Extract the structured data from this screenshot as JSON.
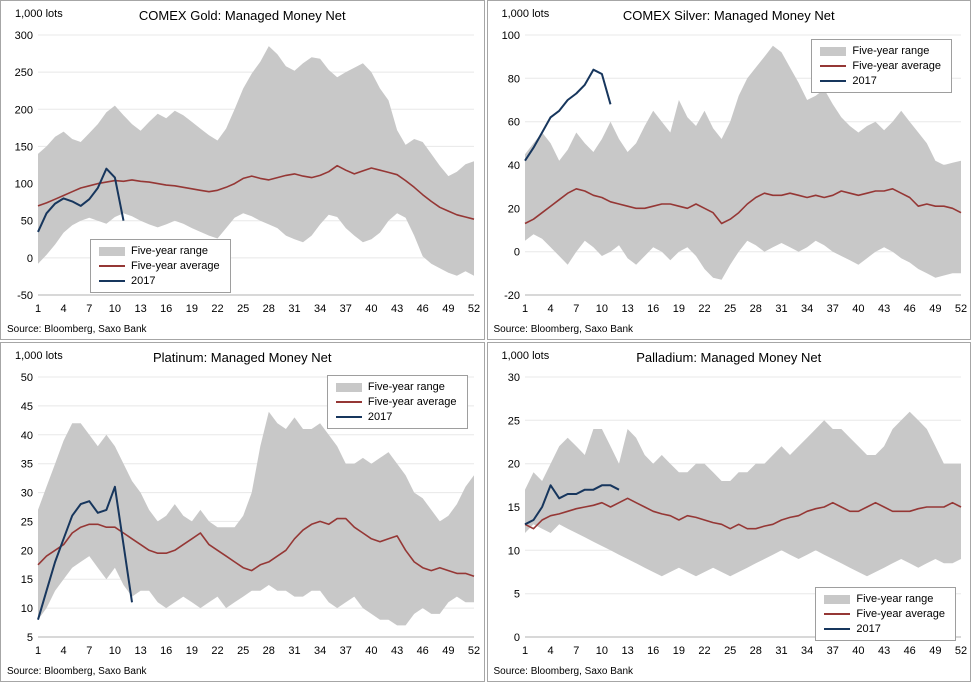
{
  "legend_items": [
    "Five-year range",
    "Five-year average",
    "2017"
  ],
  "colors": {
    "range": "#c8c8c8",
    "average": "#953735",
    "line2017": "#17365d",
    "grid": "#e8e8e8",
    "axis": "#b0b0b0"
  },
  "chart_data": [
    {
      "type": "area",
      "title": "COMEX Gold: Managed Money Net",
      "units_label": "1,000 lots",
      "source": "Source: Bloomberg, Saxo Bank",
      "xlabel": "",
      "ylabel": "1,000 lots",
      "x_range": [
        1,
        52
      ],
      "xticks": [
        1,
        4,
        7,
        10,
        13,
        16,
        19,
        22,
        25,
        28,
        31,
        34,
        37,
        40,
        43,
        46,
        49,
        52
      ],
      "ylim": [
        -50,
        300
      ],
      "yticks": [
        -50,
        0,
        50,
        100,
        150,
        200,
        250,
        300
      ],
      "grid": true,
      "legend_position": "inside-bottom-left",
      "legend_pos": {
        "left": 89,
        "top": 212
      },
      "series": [
        {
          "name": "Five-year range",
          "type": "band",
          "high": [
            140,
            150,
            163,
            170,
            160,
            156,
            168,
            180,
            196,
            205,
            192,
            180,
            171,
            183,
            194,
            188,
            198,
            192,
            183,
            174,
            165,
            158,
            174,
            200,
            228,
            248,
            264,
            285,
            274,
            258,
            252,
            262,
            270,
            268,
            253,
            243,
            250,
            256,
            262,
            250,
            228,
            212,
            172,
            152,
            160,
            156,
            140,
            124,
            110,
            116,
            126,
            130
          ],
          "low": [
            -8,
            4,
            18,
            34,
            44,
            50,
            54,
            50,
            46,
            55,
            60,
            56,
            50,
            45,
            41,
            45,
            50,
            46,
            40,
            35,
            30,
            26,
            40,
            54,
            60,
            56,
            50,
            45,
            40,
            30,
            25,
            21,
            30,
            45,
            58,
            55,
            40,
            30,
            21,
            25,
            34,
            50,
            60,
            54,
            30,
            2,
            -8,
            -14,
            -20,
            -24,
            -18,
            -24
          ]
        },
        {
          "name": "Five-year average",
          "type": "line",
          "values": [
            70,
            74,
            79,
            84,
            89,
            94,
            97,
            100,
            102,
            104,
            103,
            105,
            103,
            102,
            100,
            98,
            97,
            95,
            93,
            91,
            89,
            91,
            95,
            100,
            107,
            110,
            107,
            105,
            108,
            111,
            113,
            110,
            108,
            111,
            116,
            124,
            118,
            113,
            117,
            121,
            118,
            115,
            112,
            104,
            95,
            85,
            76,
            68,
            63,
            58,
            55,
            52
          ]
        },
        {
          "name": "2017",
          "type": "line",
          "values": [
            35,
            60,
            73,
            80,
            76,
            70,
            79,
            94,
            120,
            108,
            50
          ]
        }
      ]
    },
    {
      "type": "area",
      "title": "COMEX Silver: Managed Money Net",
      "units_label": "1,000 lots",
      "source": "Source: Bloomberg, Saxo Bank",
      "xlabel": "",
      "ylabel": "1,000 lots",
      "x_range": [
        1,
        52
      ],
      "xticks": [
        1,
        4,
        7,
        10,
        13,
        16,
        19,
        22,
        25,
        28,
        31,
        34,
        37,
        40,
        43,
        46,
        49,
        52
      ],
      "ylim": [
        -20,
        100
      ],
      "yticks": [
        -20,
        0,
        20,
        40,
        60,
        80,
        100
      ],
      "grid": true,
      "legend_position": "inside-top-right",
      "legend_pos": {
        "right": 18,
        "top": 12
      },
      "series": [
        {
          "name": "Five-year range",
          "type": "band",
          "high": [
            45,
            50,
            55,
            50,
            42,
            47,
            55,
            50,
            46,
            52,
            60,
            52,
            46,
            50,
            58,
            65,
            60,
            55,
            70,
            62,
            58,
            65,
            57,
            52,
            60,
            72,
            80,
            85,
            90,
            95,
            92,
            85,
            78,
            70,
            72,
            75,
            68,
            62,
            58,
            55,
            58,
            60,
            56,
            60,
            65,
            60,
            55,
            50,
            42,
            40,
            41,
            42
          ],
          "low": [
            5,
            8,
            6,
            2,
            -2,
            -6,
            0,
            5,
            2,
            -2,
            0,
            3,
            -3,
            -6,
            -2,
            2,
            0,
            -4,
            0,
            2,
            -2,
            -8,
            -12,
            -13,
            -6,
            0,
            5,
            3,
            0,
            2,
            4,
            2,
            0,
            2,
            5,
            3,
            0,
            -2,
            -4,
            -6,
            -3,
            0,
            2,
            0,
            -3,
            -5,
            -8,
            -10,
            -12,
            -11,
            -10,
            -10
          ]
        },
        {
          "name": "Five-year average",
          "type": "line",
          "values": [
            13,
            15,
            18,
            21,
            24,
            27,
            29,
            28,
            26,
            25,
            23,
            22,
            21,
            20,
            20,
            21,
            22,
            22,
            21,
            20,
            22,
            20,
            18,
            13,
            15,
            18,
            22,
            25,
            27,
            26,
            26,
            27,
            26,
            25,
            26,
            25,
            26,
            28,
            27,
            26,
            27,
            28,
            28,
            29,
            27,
            25,
            21,
            22,
            21,
            21,
            20,
            18
          ]
        },
        {
          "name": "2017",
          "type": "line",
          "values": [
            42,
            48,
            55,
            62,
            65,
            70,
            73,
            77,
            84,
            82,
            68
          ]
        }
      ]
    },
    {
      "type": "area",
      "title": "Platinum: Managed Money Net",
      "units_label": "1,000 lots",
      "source": "Source: Bloomberg, Saxo Bank",
      "xlabel": "",
      "ylabel": "1,000 lots",
      "x_range": [
        1,
        52
      ],
      "xticks": [
        1,
        4,
        7,
        10,
        13,
        16,
        19,
        22,
        25,
        28,
        31,
        34,
        37,
        40,
        43,
        46,
        49,
        52
      ],
      "ylim": [
        5,
        50
      ],
      "yticks": [
        5,
        10,
        15,
        20,
        25,
        30,
        35,
        40,
        45,
        50
      ],
      "grid": true,
      "legend_position": "inside-top-right",
      "legend_pos": {
        "right": 16,
        "top": 6
      },
      "series": [
        {
          "name": "Five-year range",
          "type": "band",
          "high": [
            27,
            31,
            35,
            39,
            42,
            42,
            40,
            38,
            40,
            38,
            35,
            32,
            30,
            27,
            25,
            26,
            28,
            26,
            25,
            27,
            25,
            24,
            24,
            24,
            26,
            30,
            38,
            44,
            42,
            41,
            43,
            41,
            41,
            42,
            40,
            38,
            35,
            35,
            36,
            35,
            36,
            37,
            35,
            33,
            30,
            29,
            27,
            25,
            26,
            28,
            31,
            33
          ],
          "low": [
            8,
            10,
            13,
            15,
            17,
            18,
            19,
            17,
            15,
            17,
            14,
            12,
            13,
            13,
            11,
            10,
            11,
            12,
            11,
            10,
            11,
            12,
            10,
            11,
            12,
            13,
            13,
            14,
            13,
            13,
            12,
            12,
            13,
            13,
            11,
            10,
            11,
            12,
            10,
            9,
            8,
            8,
            7,
            7,
            9,
            10,
            9,
            9,
            11,
            12,
            11,
            11
          ]
        },
        {
          "name": "Five-year average",
          "type": "line",
          "values": [
            17.5,
            19,
            20,
            21,
            23,
            24,
            24.5,
            24.5,
            24,
            24,
            23,
            22,
            21,
            20,
            19.5,
            19.5,
            20,
            21,
            22,
            23,
            21,
            20,
            19,
            18,
            17,
            16.5,
            17.5,
            18,
            19,
            20,
            22,
            23.5,
            24.5,
            25,
            24.5,
            25.5,
            25.5,
            24,
            23,
            22,
            21.5,
            22,
            22.5,
            20,
            18,
            17,
            16.5,
            17,
            16.5,
            16,
            16,
            15.5
          ]
        },
        {
          "name": "2017",
          "type": "line",
          "values": [
            8,
            13,
            18,
            22,
            26,
            28,
            28.5,
            26.5,
            27,
            31,
            21,
            11
          ]
        }
      ]
    },
    {
      "type": "area",
      "title": "Palladium: Managed Money Net",
      "units_label": "1,000 lots",
      "source": "Source: Bloomberg, Saxo Bank",
      "xlabel": "",
      "ylabel": "1,000 lots",
      "x_range": [
        1,
        52
      ],
      "xticks": [
        1,
        4,
        7,
        10,
        13,
        16,
        19,
        22,
        25,
        28,
        31,
        34,
        37,
        40,
        43,
        46,
        49,
        52
      ],
      "ylim": [
        0,
        30
      ],
      "yticks": [
        0,
        5,
        10,
        15,
        20,
        25,
        30
      ],
      "grid": true,
      "legend_position": "inside-bottom-right",
      "legend_pos": {
        "right": 14,
        "top": 218
      },
      "series": [
        {
          "name": "Five-year range",
          "type": "band",
          "high": [
            17,
            19,
            18,
            20,
            22,
            23,
            22,
            21,
            24,
            24,
            22,
            20,
            24,
            23,
            21,
            20,
            21,
            20,
            19,
            19,
            20,
            20,
            19,
            18,
            18,
            19,
            19,
            20,
            20,
            21,
            22,
            21,
            22,
            23,
            24,
            25,
            24,
            24,
            23,
            22,
            21,
            21,
            22,
            24,
            25,
            26,
            25,
            24,
            22,
            20,
            20,
            20
          ],
          "low": [
            12,
            13,
            12.5,
            12,
            13,
            12.5,
            12,
            11.5,
            11,
            10.5,
            10,
            9.5,
            9,
            8.5,
            8,
            7.5,
            7,
            7.5,
            8,
            7.5,
            7,
            7.5,
            8,
            7.5,
            7,
            7.5,
            8,
            8.5,
            9,
            9.5,
            10,
            9.5,
            9,
            9.5,
            10,
            9.5,
            9,
            8.5,
            8,
            7.5,
            7,
            7.5,
            8,
            8.5,
            9,
            8.5,
            8,
            8.5,
            9,
            8.5,
            8.5,
            9
          ]
        },
        {
          "name": "Five-year average",
          "type": "line",
          "values": [
            13,
            12.5,
            13.5,
            14,
            14.2,
            14.5,
            14.8,
            15,
            15.2,
            15.5,
            15,
            15.5,
            16,
            15.5,
            15,
            14.5,
            14.2,
            14,
            13.5,
            14,
            13.8,
            13.5,
            13.2,
            13,
            12.5,
            13,
            12.5,
            12.5,
            12.8,
            13,
            13.5,
            13.8,
            14,
            14.5,
            14.8,
            15,
            15.5,
            15,
            14.5,
            14.5,
            15,
            15.5,
            15,
            14.5,
            14.5,
            14.5,
            14.8,
            15,
            15,
            15,
            15.5,
            15
          ]
        },
        {
          "name": "2017",
          "type": "line",
          "values": [
            13,
            13.5,
            15,
            17.5,
            16,
            16.5,
            16.5,
            17,
            17,
            17.5,
            17.5,
            17
          ]
        }
      ]
    }
  ]
}
